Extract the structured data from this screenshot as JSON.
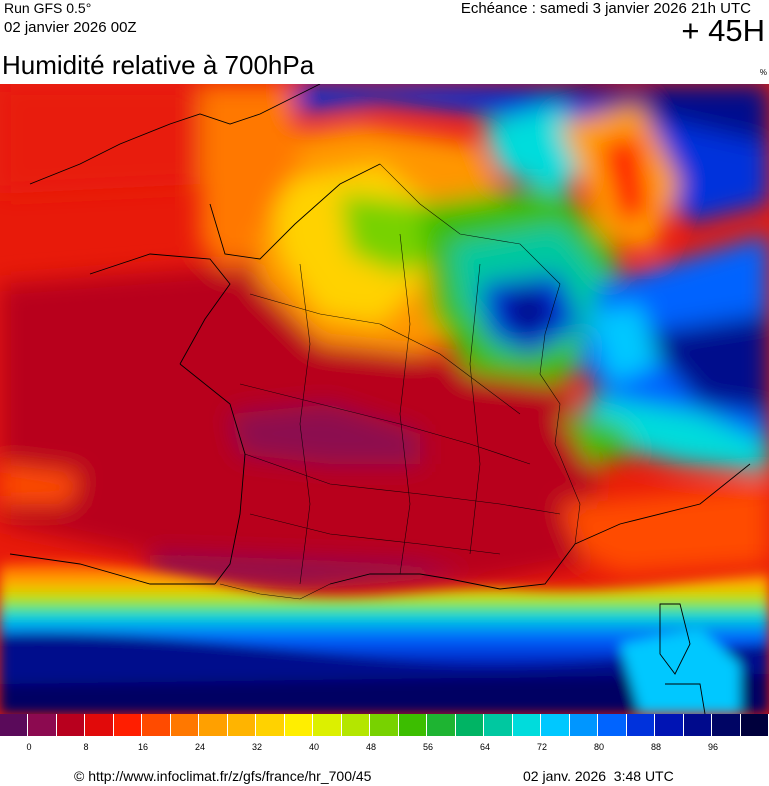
{
  "header": {
    "run": "Run GFS 0.5°",
    "run_date": "02 janvier 2026 00Z",
    "valid": "Echéance : samedi 3 janvier 2026 21h UTC",
    "lead": "+ 45H"
  },
  "title": "Humidité relative à 700hPa",
  "unit": "%",
  "legend": {
    "colors": [
      "#5a0a5a",
      "#8c0a50",
      "#b8001e",
      "#e10a0a",
      "#ff1e00",
      "#ff4b00",
      "#ff7800",
      "#ffa000",
      "#ffb400",
      "#ffd200",
      "#ffee00",
      "#dcf000",
      "#b4e600",
      "#78d200",
      "#3cbe00",
      "#1eb432",
      "#00b464",
      "#00c8a0",
      "#00dcdc",
      "#00c8ff",
      "#0096ff",
      "#0064ff",
      "#0032dc",
      "#0014b4",
      "#000a8c",
      "#000564",
      "#00003c"
    ],
    "ticks": [
      "0",
      "8",
      "16",
      "24",
      "32",
      "40",
      "48",
      "56",
      "64",
      "72",
      "80",
      "88",
      "96"
    ]
  },
  "footer": {
    "source": "© http://www.infoclimat.fr/z/gfs/france/hr_700/45",
    "generated": "02 janv. 2026  3:48 UTC"
  }
}
